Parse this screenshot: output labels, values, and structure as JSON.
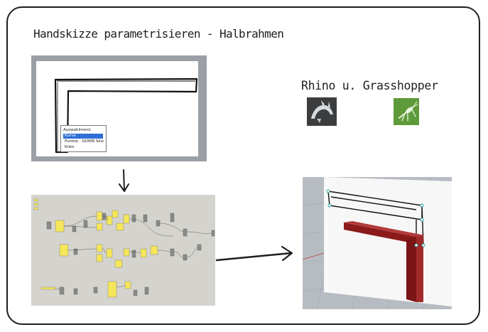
{
  "title": "Handskizze parametrisieren - Halbrahmen",
  "apps_label": "Rhino u. Grasshopper",
  "context_menu": {
    "title": "Auswahlmenü",
    "items": [
      "Kurve",
      "Punkte - GDWR Skiz",
      "Kreis"
    ],
    "selected_index": 0
  },
  "icons": {
    "rhino": "rhino-logo-icon",
    "grasshopper": "grasshopper-logo-icon"
  },
  "colors": {
    "frame": "#1e1e1e",
    "selection": "#2f6fd6",
    "gh_component": "#f5e65a",
    "rhino_beam": "#8b1a1a"
  }
}
